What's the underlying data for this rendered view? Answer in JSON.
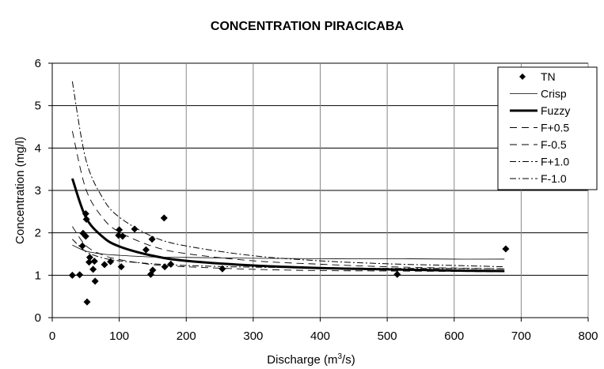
{
  "chart_data": {
    "type": "scatter",
    "title": "CONCENTRATION PIRACICABA",
    "xlabel": "Discharge (m",
    "xlabel_sup": "3",
    "xlabel_end": "/s)",
    "ylabel": "Concentration (mg/l)",
    "xlim": [
      0,
      800
    ],
    "ylim": [
      0,
      6
    ],
    "xticks": [
      0,
      100,
      200,
      300,
      400,
      500,
      600,
      700,
      800
    ],
    "yticks": [
      0,
      1,
      2,
      3,
      4,
      5,
      6
    ],
    "grid": true,
    "legend_position": "top-right",
    "points": {
      "name": "TN",
      "x": [
        30,
        41,
        50,
        51,
        46,
        50,
        45,
        56,
        55,
        63,
        61,
        64,
        52,
        78,
        87,
        100,
        99,
        105,
        103,
        123,
        140,
        149,
        150,
        147,
        167,
        168,
        177,
        254,
        515,
        677
      ],
      "y": [
        1.0,
        1.01,
        2.45,
        2.32,
        1.99,
        1.92,
        1.69,
        1.42,
        1.31,
        1.33,
        1.14,
        0.86,
        0.37,
        1.25,
        1.32,
        2.07,
        1.94,
        1.92,
        1.2,
        2.09,
        1.6,
        1.85,
        1.12,
        1.02,
        2.35,
        1.2,
        1.26,
        1.15,
        1.02,
        1.62
      ]
    },
    "curve_x": [
      30,
      50,
      75,
      100,
      150,
      200,
      300,
      400,
      500,
      600,
      675
    ],
    "series": [
      {
        "name": "Crisp",
        "style": "thin",
        "values": [
          1.71,
          1.57,
          1.5,
          1.47,
          1.43,
          1.42,
          1.4,
          1.39,
          1.39,
          1.38,
          1.38
        ]
      },
      {
        "name": "Fuzzy",
        "style": "thick",
        "values": [
          3.28,
          2.37,
          1.91,
          1.68,
          1.46,
          1.34,
          1.23,
          1.17,
          1.14,
          1.11,
          1.1
        ]
      },
      {
        "name": "F+0.5",
        "style": "dash",
        "values": [
          4.4,
          3.04,
          2.36,
          2.02,
          1.68,
          1.51,
          1.34,
          1.26,
          1.2,
          1.17,
          1.15
        ]
      },
      {
        "name": "F-0.5",
        "style": "dash",
        "values": [
          2.15,
          1.7,
          1.48,
          1.37,
          1.25,
          1.2,
          1.14,
          1.11,
          1.1,
          1.09,
          1.08
        ]
      },
      {
        "name": "F+1.0",
        "style": "dashdot",
        "values": [
          5.57,
          3.74,
          2.83,
          2.37,
          1.91,
          1.69,
          1.46,
          1.34,
          1.27,
          1.23,
          1.2
        ]
      },
      {
        "name": "F-1.0",
        "style": "dashdot",
        "values": [
          1.85,
          1.56,
          1.41,
          1.34,
          1.27,
          1.23,
          1.19,
          1.18,
          1.16,
          1.16,
          1.15
        ]
      }
    ]
  }
}
